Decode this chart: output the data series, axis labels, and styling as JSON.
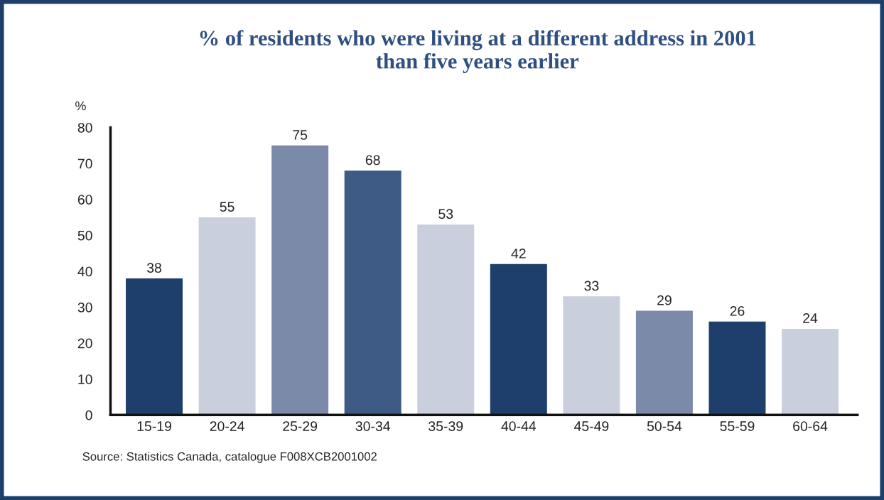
{
  "chart_data": {
    "type": "bar",
    "title": "% of residents who were living at a different address in 2001\nthan five years earlier",
    "ylabel": "%",
    "categories": [
      "15-19",
      "20-24",
      "25-29",
      "30-34",
      "35-39",
      "40-44",
      "45-49",
      "50-54",
      "55-59",
      "60-64"
    ],
    "values": [
      38,
      55,
      75,
      68,
      53,
      42,
      33,
      29,
      26,
      24
    ],
    "colors": [
      "#1e3f6b",
      "#c9cfdc",
      "#7a8aa8",
      "#3d5b85",
      "#c9cfdc",
      "#1e3f6b",
      "#c9cfdc",
      "#7a8aa8",
      "#1e3f6b",
      "#c9cfdc"
    ],
    "ylim": [
      0,
      80
    ],
    "yticks": [
      0,
      10,
      20,
      30,
      40,
      50,
      60,
      70,
      80
    ],
    "grid": false,
    "data_labels": true,
    "annotations": [
      "Source: Statistics Canada, catalogue F008XCB2001002"
    ]
  }
}
